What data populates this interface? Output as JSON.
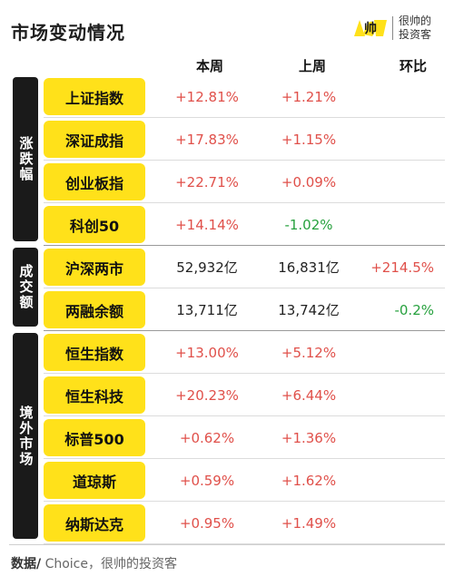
{
  "title": "市场变动情况",
  "logo": {
    "mark_text": "帅",
    "line1": "很帅的",
    "line2": "投资客",
    "mark_color": "#ffe11a"
  },
  "headers": {
    "this_week": "本周",
    "last_week": "上周",
    "change": "环比"
  },
  "groups": [
    {
      "label": "涨跌幅"
    },
    {
      "label": "成交额"
    },
    {
      "label": "境外市场"
    }
  ],
  "rows": [
    {
      "name": "上证指数",
      "this_week": "+12.81%",
      "last_week": "+1.21%",
      "change": ""
    },
    {
      "name": "深证成指",
      "this_week": "+17.83%",
      "last_week": "+1.15%",
      "change": ""
    },
    {
      "name": "创业板指",
      "this_week": "+22.71%",
      "last_week": "+0.09%",
      "change": ""
    },
    {
      "name": "科创50",
      "this_week": "+14.14%",
      "last_week": "-1.02%",
      "change": ""
    },
    {
      "name": "沪深两市",
      "this_week": "52,932亿",
      "last_week": "16,831亿",
      "change": "+214.5%"
    },
    {
      "name": "两融余额",
      "this_week": "13,711亿",
      "last_week": "13,742亿",
      "change": "-0.2%"
    },
    {
      "name": "恒生指数",
      "this_week": "+13.00%",
      "last_week": "+5.12%",
      "change": ""
    },
    {
      "name": "恒生科技",
      "this_week": "+20.23%",
      "last_week": "+6.44%",
      "change": ""
    },
    {
      "name": "标普500",
      "this_week": "+0.62%",
      "last_week": "+1.36%",
      "change": ""
    },
    {
      "name": "道琼斯",
      "this_week": "+0.59%",
      "last_week": "+1.62%",
      "change": ""
    },
    {
      "name": "纳斯达克",
      "this_week": "+0.95%",
      "last_week": "+1.49%",
      "change": ""
    }
  ],
  "colors": {
    "up": "#e0504a",
    "down": "#27a13e",
    "highlight": "#ffe11a",
    "group_bg": "#1a1a1a"
  },
  "source": {
    "label": "数据/",
    "text": " Choice，很帅的投资客"
  }
}
